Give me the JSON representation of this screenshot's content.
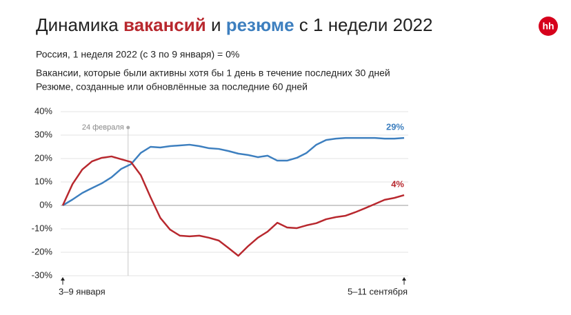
{
  "chart_data": {
    "type": "line",
    "title": [
      "Динамика",
      "вакансий",
      "и",
      "резюме",
      "с 1 недели 2022"
    ],
    "subtitle": "Россия, 1 неделя 2022 (с 3 по 9 января) = 0%",
    "notes": [
      "Вакансии, которые были активны хотя бы 1 день в течение последних 30 дней",
      "Резюме, созданные или обновлённые за последние 60 дней"
    ],
    "logo": "hh",
    "x": [
      1,
      2,
      3,
      4,
      5,
      6,
      7,
      8,
      9,
      10,
      11,
      12,
      13,
      14,
      15,
      16,
      17,
      18,
      19,
      20,
      21,
      22,
      23,
      24,
      25,
      26,
      27,
      28,
      29,
      30,
      31,
      32,
      33,
      34,
      35,
      36
    ],
    "xlim": [
      1,
      36
    ],
    "xticks": [
      {
        "value": 1,
        "label": "3–9 января"
      },
      {
        "value": 36,
        "label": "5–11 сентября"
      }
    ],
    "ylim": [
      -30,
      40
    ],
    "yticks": [
      {
        "value": 40,
        "label": "40%"
      },
      {
        "value": 30,
        "label": "30%"
      },
      {
        "value": 20,
        "label": "20%"
      },
      {
        "value": 10,
        "label": "10%"
      },
      {
        "value": 0,
        "label": "0%"
      },
      {
        "value": -10,
        "label": "-10%"
      },
      {
        "value": -20,
        "label": "-20%"
      },
      {
        "value": -30,
        "label": "-30%"
      }
    ],
    "grid": true,
    "annotations": [
      {
        "x": 7.7,
        "text": "24 февраля"
      }
    ],
    "series": [
      {
        "name": "резюме",
        "color": "#3d7fbf",
        "values": [
          0,
          2.5,
          5.3,
          7.4,
          9.4,
          12,
          15.6,
          17.6,
          22.4,
          25,
          24.7,
          25.3,
          25.6,
          25.9,
          25.3,
          24.4,
          24.1,
          23.2,
          22.1,
          21.5,
          20.6,
          21.2,
          19.1,
          19.1,
          20.3,
          22.4,
          25.9,
          27.9,
          28.5,
          28.8,
          28.8,
          28.8,
          28.8,
          28.5,
          28.5,
          28.8
        ],
        "value_labels": [
          null,
          null,
          null,
          null,
          null,
          null,
          null,
          null,
          null,
          null,
          null,
          null,
          null,
          null,
          null,
          null,
          null,
          null,
          null,
          null,
          null,
          null,
          null,
          null,
          null,
          null,
          null,
          null,
          null,
          null,
          null,
          null,
          null,
          null,
          null,
          "29%"
        ]
      },
      {
        "name": "вакансий",
        "color": "#b8282e",
        "values": [
          0,
          9.1,
          15.3,
          18.8,
          20.3,
          20.9,
          19.7,
          18.5,
          12.9,
          3.5,
          -5.3,
          -10.3,
          -12.9,
          -13.2,
          -12.9,
          -13.8,
          -15,
          -18.2,
          -21.5,
          -17.4,
          -13.8,
          -11.2,
          -7.4,
          -9.4,
          -9.7,
          -8.5,
          -7.6,
          -5.9,
          -5,
          -4.4,
          -2.9,
          -1.2,
          0.6,
          2.4,
          3.2,
          4.4
        ],
        "value_labels": [
          null,
          null,
          null,
          null,
          null,
          null,
          null,
          null,
          null,
          null,
          null,
          null,
          null,
          null,
          null,
          null,
          null,
          null,
          null,
          null,
          null,
          null,
          null,
          null,
          null,
          null,
          null,
          null,
          null,
          null,
          null,
          null,
          null,
          null,
          null,
          "4%"
        ]
      }
    ]
  }
}
